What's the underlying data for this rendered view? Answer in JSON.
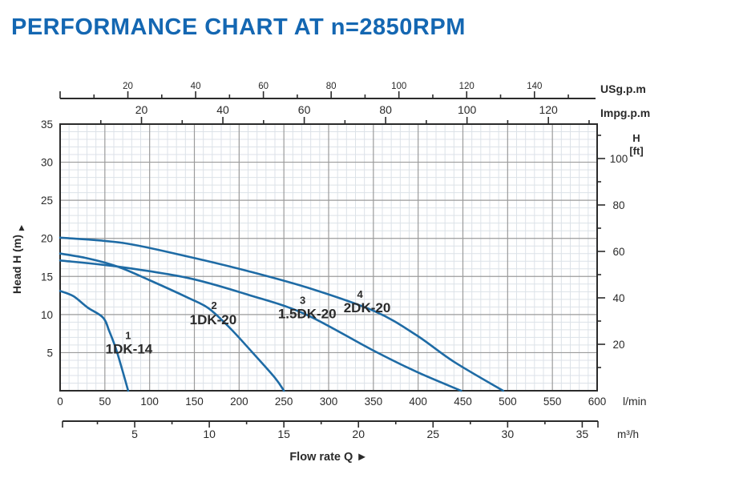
{
  "title": "PERFORMANCE CHART AT n=2850RPM",
  "colors": {
    "title": "#1467b2",
    "curve": "#1e6ba5",
    "axis": "#2b2b2b",
    "grid_major": "#9b9b9b",
    "grid_minor": "#dce2e8",
    "text": "#2a2a2a"
  },
  "chart_data": {
    "type": "line",
    "title": "PERFORMANCE CHART AT n=2850RPM",
    "x_axis": {
      "label": "Flow rate Q",
      "arrow": "►",
      "unit": "l/min",
      "min": 0,
      "max": 600,
      "major_step": 50,
      "minor_step": 10,
      "tick_labels": [
        0,
        50,
        100,
        150,
        200,
        250,
        300,
        350,
        400,
        450,
        500,
        550,
        600
      ]
    },
    "y_axis": {
      "label": "Head H (m)",
      "arrow": "▲",
      "unit": "m",
      "min": 0,
      "max": 35,
      "major_step": 5,
      "minor_step": 1,
      "tick_labels": [
        5,
        10,
        15,
        20,
        25,
        30,
        35
      ]
    },
    "x_axis_usgpm": {
      "unit": "USg.p.m",
      "lmin_per_unit": 3.7854,
      "tick_step": 10,
      "label_step": 20,
      "max_tick": 150,
      "tick_labels": [
        20,
        40,
        60,
        80,
        100,
        120,
        140
      ]
    },
    "x_axis_impgpm": {
      "unit": "Impg.p.m",
      "lmin_per_unit": 4.5461,
      "tick_step": 10,
      "label_step": 20,
      "max_tick": 130,
      "tick_labels": [
        20,
        40,
        60,
        80,
        100,
        120
      ]
    },
    "x_axis_m3h": {
      "unit": "m³/h",
      "lmin_per_unit": 16.6667,
      "tick_step": 2.5,
      "label_step": 5,
      "max_tick": 35,
      "tick_labels": [
        5,
        10,
        15,
        20,
        25,
        30,
        35
      ]
    },
    "y_axis_ft": {
      "unit_line1": "H",
      "unit_line2": "[ft]",
      "m_per_unit": 0.3048,
      "tick_step": 10,
      "label_step": 20,
      "max_tick": 110,
      "tick_labels": [
        20,
        40,
        60,
        80,
        100
      ]
    },
    "series": [
      {
        "index": "1",
        "name": "1DK-14",
        "points": [
          [
            0,
            13.1
          ],
          [
            15,
            12.4
          ],
          [
            31,
            10.9
          ],
          [
            48,
            9.6
          ],
          [
            55,
            7.8
          ],
          [
            63,
            5.3
          ],
          [
            70,
            2.5
          ],
          [
            76,
            0
          ]
        ],
        "name_pos": [
          77,
          4.9
        ],
        "index_pos": [
          76,
          6.8
        ]
      },
      {
        "index": "2",
        "name": "1DK-20",
        "points": [
          [
            0,
            18.0
          ],
          [
            30,
            17.4
          ],
          [
            64,
            16.3
          ],
          [
            100,
            14.5
          ],
          [
            143,
            12.2
          ],
          [
            166,
            10.8
          ],
          [
            190,
            8.2
          ],
          [
            215,
            5.0
          ],
          [
            240,
            1.7
          ],
          [
            250,
            0
          ]
        ],
        "name_pos": [
          171,
          8.7
        ],
        "index_pos": [
          172,
          10.7
        ]
      },
      {
        "index": "3",
        "name": "1.5DK-20",
        "points": [
          [
            0,
            17.1
          ],
          [
            64,
            16.3
          ],
          [
            143,
            14.8
          ],
          [
            210,
            12.6
          ],
          [
            273,
            10.1
          ],
          [
            348,
            5.4
          ],
          [
            398,
            2.5
          ],
          [
            448,
            0
          ]
        ],
        "name_pos": [
          276,
          9.5
        ],
        "index_pos": [
          271,
          11.4
        ]
      },
      {
        "index": "4",
        "name": "2DK-20",
        "points": [
          [
            0,
            20.1
          ],
          [
            70,
            19.4
          ],
          [
            143,
            17.6
          ],
          [
            210,
            15.7
          ],
          [
            280,
            13.4
          ],
          [
            352,
            10.4
          ],
          [
            398,
            7.3
          ],
          [
            440,
            3.8
          ],
          [
            495,
            0
          ]
        ],
        "name_pos": [
          343,
          10.3
        ],
        "index_pos": [
          335,
          12.2
        ]
      }
    ]
  }
}
